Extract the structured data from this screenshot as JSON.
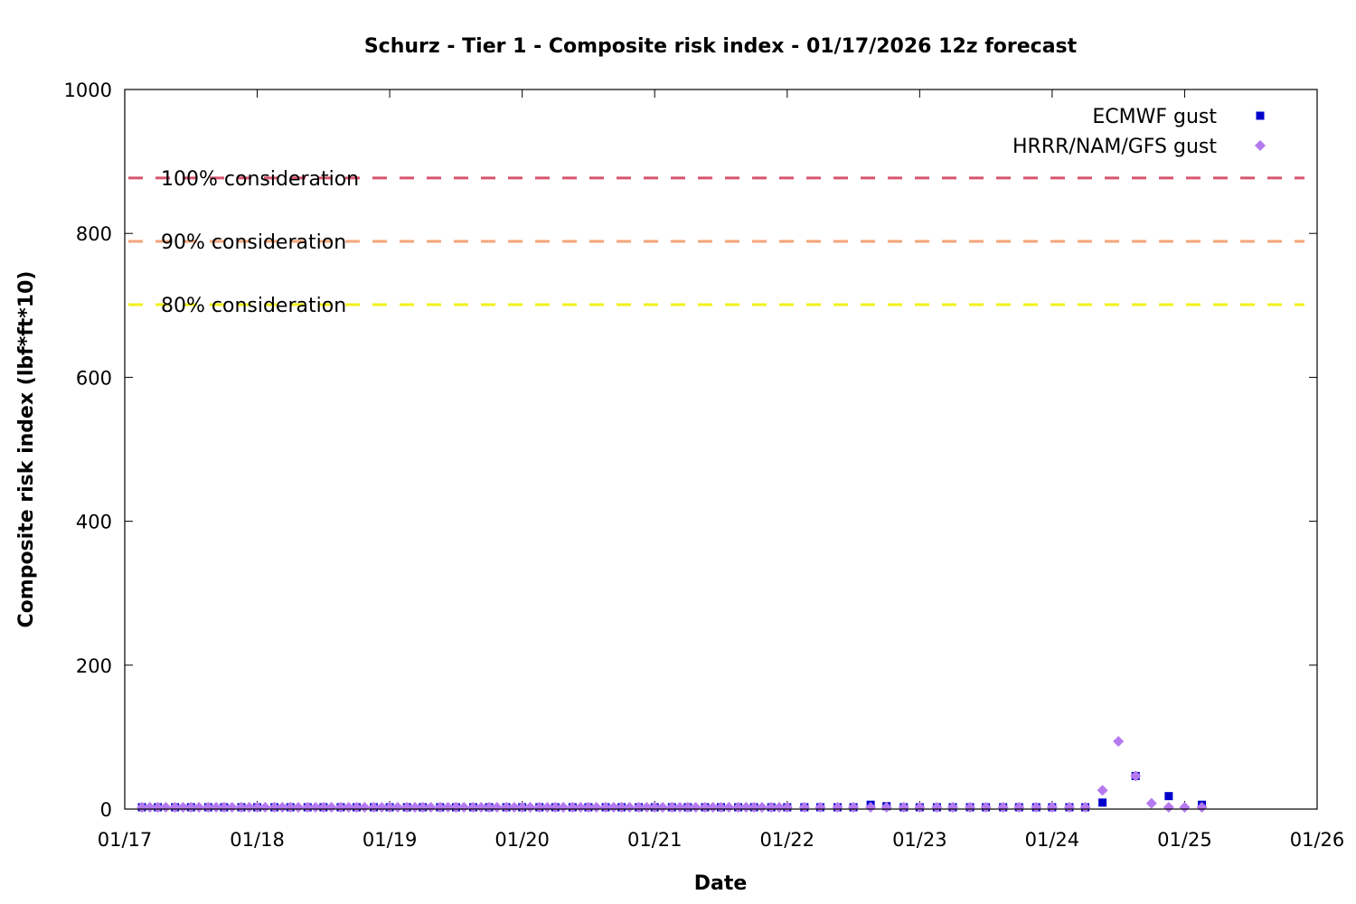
{
  "chart_data": {
    "type": "scatter",
    "title": "Schurz - Tier 1 - Composite risk index - 01/17/2026 12z forecast",
    "xlabel": "Date",
    "ylabel": "Composite risk index (lbf*ft*10)",
    "x_ticks": [
      "01/17",
      "01/18",
      "01/19",
      "01/20",
      "01/21",
      "01/22",
      "01/23",
      "01/24",
      "01/25",
      "01/26"
    ],
    "xlim": [
      0,
      9
    ],
    "ylim": [
      0,
      1000
    ],
    "y_ticks": [
      0,
      200,
      400,
      600,
      800,
      1000
    ],
    "grid": false,
    "legend_position": "top-right",
    "thresholds": [
      {
        "label": "100% consideration",
        "value": 877,
        "color": "#d6556e"
      },
      {
        "label": "90% consideration",
        "value": 789,
        "color": "#f5a57a"
      },
      {
        "label": "80% consideration",
        "value": 701,
        "color": "#f2f21a"
      }
    ],
    "series": [
      {
        "name": "ECMWF gust",
        "marker": "square",
        "color": "#0000cc",
        "points": [
          [
            0.13,
            1
          ],
          [
            0.25,
            1
          ],
          [
            0.38,
            1
          ],
          [
            0.5,
            2
          ],
          [
            0.63,
            1
          ],
          [
            0.75,
            1
          ],
          [
            0.88,
            1
          ],
          [
            1.0,
            1
          ],
          [
            1.13,
            1
          ],
          [
            1.25,
            1
          ],
          [
            1.38,
            1
          ],
          [
            1.5,
            2
          ],
          [
            1.63,
            2
          ],
          [
            1.75,
            1
          ],
          [
            1.88,
            1
          ],
          [
            2.0,
            1
          ],
          [
            2.13,
            1
          ],
          [
            2.25,
            1
          ],
          [
            2.38,
            1
          ],
          [
            2.5,
            2
          ],
          [
            2.63,
            1
          ],
          [
            2.75,
            1
          ],
          [
            2.88,
            1
          ],
          [
            3.0,
            1
          ],
          [
            3.13,
            1
          ],
          [
            3.25,
            1
          ],
          [
            3.38,
            1
          ],
          [
            3.5,
            2
          ],
          [
            3.63,
            1
          ],
          [
            3.75,
            1
          ],
          [
            3.88,
            1
          ],
          [
            4.0,
            1
          ],
          [
            4.13,
            1
          ],
          [
            4.25,
            1
          ],
          [
            4.38,
            1
          ],
          [
            4.5,
            1
          ],
          [
            4.63,
            2
          ],
          [
            4.75,
            1
          ],
          [
            4.88,
            1
          ],
          [
            5.0,
            1
          ],
          [
            5.13,
            1
          ],
          [
            5.25,
            1
          ],
          [
            5.38,
            1
          ],
          [
            5.5,
            1
          ],
          [
            5.63,
            6
          ],
          [
            5.75,
            4
          ],
          [
            5.88,
            1
          ],
          [
            6.0,
            1
          ],
          [
            6.13,
            1
          ],
          [
            6.25,
            1
          ],
          [
            6.38,
            1
          ],
          [
            6.5,
            1
          ],
          [
            6.63,
            1
          ],
          [
            6.75,
            1
          ],
          [
            6.88,
            1
          ],
          [
            7.0,
            1
          ],
          [
            7.13,
            1
          ],
          [
            7.25,
            1
          ],
          [
            7.38,
            9
          ],
          [
            7.63,
            46
          ],
          [
            7.88,
            18
          ],
          [
            8.13,
            6
          ]
        ]
      },
      {
        "name": "HRRR/NAM/GFS gust",
        "marker": "diamond",
        "color": "#b57af0",
        "points": [
          [
            0.13,
            1
          ],
          [
            0.19,
            1
          ],
          [
            0.25,
            1
          ],
          [
            0.31,
            1
          ],
          [
            0.38,
            1
          ],
          [
            0.44,
            1
          ],
          [
            0.5,
            1
          ],
          [
            0.56,
            1
          ],
          [
            0.63,
            1
          ],
          [
            0.69,
            1
          ],
          [
            0.75,
            1
          ],
          [
            0.81,
            1
          ],
          [
            0.88,
            1
          ],
          [
            0.94,
            1
          ],
          [
            1.0,
            1
          ],
          [
            1.06,
            1
          ],
          [
            1.13,
            1
          ],
          [
            1.19,
            1
          ],
          [
            1.25,
            1
          ],
          [
            1.31,
            1
          ],
          [
            1.38,
            1
          ],
          [
            1.44,
            1
          ],
          [
            1.5,
            1
          ],
          [
            1.56,
            1
          ],
          [
            1.63,
            1
          ],
          [
            1.69,
            1
          ],
          [
            1.75,
            1
          ],
          [
            1.81,
            1
          ],
          [
            1.88,
            1
          ],
          [
            1.94,
            1
          ],
          [
            2.0,
            1
          ],
          [
            2.06,
            1
          ],
          [
            2.13,
            1
          ],
          [
            2.19,
            1
          ],
          [
            2.25,
            1
          ],
          [
            2.31,
            1
          ],
          [
            2.38,
            1
          ],
          [
            2.44,
            1
          ],
          [
            2.5,
            1
          ],
          [
            2.56,
            1
          ],
          [
            2.63,
            1
          ],
          [
            2.69,
            1
          ],
          [
            2.75,
            1
          ],
          [
            2.81,
            1
          ],
          [
            2.88,
            1
          ],
          [
            2.94,
            1
          ],
          [
            3.0,
            1
          ],
          [
            3.06,
            1
          ],
          [
            3.13,
            1
          ],
          [
            3.19,
            1
          ],
          [
            3.25,
            1
          ],
          [
            3.31,
            1
          ],
          [
            3.38,
            1
          ],
          [
            3.44,
            1
          ],
          [
            3.5,
            1
          ],
          [
            3.56,
            1
          ],
          [
            3.63,
            1
          ],
          [
            3.69,
            1
          ],
          [
            3.75,
            1
          ],
          [
            3.81,
            1
          ],
          [
            3.88,
            1
          ],
          [
            3.94,
            1
          ],
          [
            4.0,
            1
          ],
          [
            4.06,
            1
          ],
          [
            4.13,
            1
          ],
          [
            4.19,
            1
          ],
          [
            4.25,
            1
          ],
          [
            4.31,
            1
          ],
          [
            4.38,
            1
          ],
          [
            4.44,
            1
          ],
          [
            4.5,
            1
          ],
          [
            4.56,
            1
          ],
          [
            4.63,
            1
          ],
          [
            4.69,
            1
          ],
          [
            4.75,
            1
          ],
          [
            4.81,
            1
          ],
          [
            4.88,
            1
          ],
          [
            4.94,
            1
          ],
          [
            5.0,
            1
          ],
          [
            5.13,
            1
          ],
          [
            5.25,
            1
          ],
          [
            5.38,
            1
          ],
          [
            5.5,
            1
          ],
          [
            5.63,
            1
          ],
          [
            5.75,
            1
          ],
          [
            5.88,
            1
          ],
          [
            6.0,
            1
          ],
          [
            6.13,
            1
          ],
          [
            6.25,
            1
          ],
          [
            6.38,
            1
          ],
          [
            6.5,
            1
          ],
          [
            6.63,
            1
          ],
          [
            6.75,
            1
          ],
          [
            6.88,
            1
          ],
          [
            7.0,
            1
          ],
          [
            7.13,
            1
          ],
          [
            7.25,
            1
          ],
          [
            7.38,
            26
          ],
          [
            7.5,
            94
          ],
          [
            7.63,
            46
          ],
          [
            7.75,
            8
          ],
          [
            7.88,
            2
          ],
          [
            8.0,
            1
          ],
          [
            8.13,
            1
          ]
        ]
      }
    ]
  }
}
